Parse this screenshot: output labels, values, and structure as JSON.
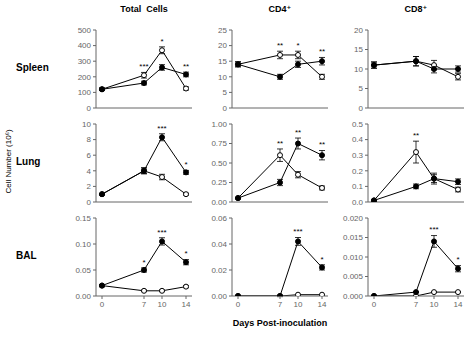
{
  "chart_data": [
    {
      "type": "line",
      "title": "Total  Cells",
      "x": [
        0,
        7,
        10,
        14
      ],
      "xlim": [
        -1,
        15
      ],
      "xticks": [
        0,
        7,
        10,
        14
      ],
      "ylim": [
        0,
        500
      ],
      "yticks": [
        0,
        100,
        200,
        300,
        400,
        500
      ],
      "grid": false,
      "tick_labels": "y",
      "series": [
        {
          "color": "#000000",
          "marker": "filled_circle",
          "values": [
            120,
            160,
            260,
            215
          ],
          "errors": [
            8,
            12,
            18,
            15
          ]
        },
        {
          "color": "#000000",
          "marker": "open_circle",
          "values": [
            120,
            210,
            370,
            125
          ],
          "errors": [
            8,
            18,
            22,
            10
          ]
        }
      ],
      "annotations": [
        {
          "text": "Spleen"
        },
        {
          "x": 7,
          "text": "***"
        },
        {
          "x": 10,
          "text": "*"
        },
        {
          "x": 14,
          "text": "**"
        }
      ]
    },
    {
      "type": "line",
      "title": "CD4⁺",
      "x": [
        0,
        7,
        10,
        14
      ],
      "xlim": [
        -1,
        15
      ],
      "xticks": [
        0,
        7,
        10,
        14
      ],
      "ylim": [
        0,
        25
      ],
      "yticks": [
        0,
        5,
        10,
        15,
        20,
        25
      ],
      "grid": false,
      "tick_labels": "y",
      "series": [
        {
          "color": "#000000",
          "marker": "filled_circle",
          "values": [
            14,
            10,
            14,
            15
          ],
          "errors": [
            0.8,
            0.8,
            1.0,
            1.2
          ]
        },
        {
          "color": "#000000",
          "marker": "open_circle",
          "values": [
            14,
            17,
            17,
            10
          ],
          "errors": [
            0.8,
            1.2,
            1.2,
            0.8
          ]
        }
      ],
      "annotations": [
        {
          "x": 7,
          "text": "**"
        },
        {
          "x": 10,
          "text": "*"
        },
        {
          "x": 14,
          "text": "**"
        }
      ]
    },
    {
      "type": "line",
      "title": "CD8⁺",
      "x": [
        0,
        7,
        10,
        14
      ],
      "xlim": [
        -1,
        15
      ],
      "xticks": [
        0,
        7,
        10,
        14
      ],
      "ylim": [
        0,
        20
      ],
      "yticks": [
        0,
        5,
        10,
        15,
        20
      ],
      "grid": false,
      "tick_labels": "y",
      "series": [
        {
          "color": "#000000",
          "marker": "filled_circle",
          "values": [
            11,
            12,
            10,
            10
          ],
          "errors": [
            0.8,
            1.2,
            1.0,
            0.8
          ]
        },
        {
          "color": "#000000",
          "marker": "open_circle",
          "values": [
            11,
            12,
            11,
            8
          ],
          "errors": [
            0.8,
            1.2,
            1.2,
            0.8
          ]
        }
      ],
      "annotations": []
    },
    {
      "type": "line",
      "ylabel": "Cell Number (10⁶)",
      "x": [
        0,
        7,
        10,
        14
      ],
      "xlim": [
        -1,
        15
      ],
      "xticks": [
        0,
        7,
        10,
        14
      ],
      "ylim": [
        0,
        10
      ],
      "yticks": [
        0,
        2,
        4,
        6,
        8,
        10
      ],
      "grid": false,
      "tick_labels": "y",
      "series": [
        {
          "color": "#000000",
          "marker": "filled_circle",
          "values": [
            1,
            4,
            8.3,
            3.8
          ],
          "errors": [
            0.08,
            0.35,
            0.45,
            0.25
          ]
        },
        {
          "color": "#000000",
          "marker": "open_circle",
          "values": [
            1,
            4,
            3.2,
            1.0
          ],
          "errors": [
            0.08,
            0.4,
            0.35,
            0.12
          ]
        }
      ],
      "annotations": [
        {
          "text": "Lung"
        },
        {
          "x": 10,
          "text": "***"
        },
        {
          "x": 14,
          "text": "*"
        }
      ]
    },
    {
      "type": "line",
      "x": [
        0,
        7,
        10,
        14
      ],
      "xlim": [
        -1,
        15
      ],
      "xticks": [
        0,
        7,
        10,
        14
      ],
      "ylim": [
        0,
        1.0
      ],
      "yticks": [
        {
          "value": 0,
          "label": "0.00"
        },
        {
          "value": 0.25,
          "label": "0.25"
        },
        {
          "value": 0.5,
          "label": "0.50"
        },
        {
          "value": 0.75,
          "label": "0.75"
        },
        {
          "value": 1.0,
          "label": "1.00"
        }
      ],
      "grid": false,
      "tick_labels": "y",
      "series": [
        {
          "color": "#000000",
          "marker": "filled_circle",
          "values": [
            0.05,
            0.25,
            0.75,
            0.6
          ],
          "errors": [
            0.008,
            0.04,
            0.07,
            0.06
          ]
        },
        {
          "color": "#000000",
          "marker": "open_circle",
          "values": [
            0.05,
            0.6,
            0.35,
            0.18
          ],
          "errors": [
            0.008,
            0.08,
            0.04,
            0.025
          ]
        }
      ],
      "annotations": [
        {
          "x": 7,
          "text": "**"
        },
        {
          "x": 10,
          "text": "**"
        },
        {
          "x": 14,
          "text": "**"
        }
      ]
    },
    {
      "type": "line",
      "x": [
        0,
        7,
        10,
        14
      ],
      "xlim": [
        -1,
        15
      ],
      "xticks": [
        0,
        7,
        10,
        14
      ],
      "ylim": [
        0,
        0.5
      ],
      "yticks": [
        {
          "value": 0,
          "label": "0.0"
        },
        0.1,
        0.2,
        0.3,
        0.4,
        0.5
      ],
      "grid": false,
      "tick_labels": "y",
      "series": [
        {
          "color": "#000000",
          "marker": "filled_circle",
          "values": [
            0.01,
            0.1,
            0.15,
            0.13
          ],
          "errors": [
            0.004,
            0.015,
            0.025,
            0.018
          ]
        },
        {
          "color": "#000000",
          "marker": "open_circle",
          "values": [
            0.01,
            0.32,
            0.15,
            0.08
          ],
          "errors": [
            0.004,
            0.07,
            0.035,
            0.015
          ]
        }
      ],
      "annotations": [
        {
          "x": 7,
          "text": "**"
        }
      ]
    },
    {
      "type": "line",
      "x": [
        0,
        7,
        10,
        14
      ],
      "xlim": [
        -1,
        15
      ],
      "xticks": [
        0,
        7,
        10,
        14
      ],
      "ylim": [
        0,
        0.15
      ],
      "yticks": [
        {
          "value": 0,
          "label": "0.00"
        },
        0.05,
        {
          "value": 0.1,
          "label": "0.10"
        },
        0.15
      ],
      "grid": false,
      "series": [
        {
          "color": "#000000",
          "marker": "filled_circle",
          "values": [
            0.02,
            0.05,
            0.105,
            0.065
          ],
          "errors": [
            0.002,
            0.004,
            0.007,
            0.005
          ]
        },
        {
          "color": "#000000",
          "marker": "open_circle",
          "values": [
            0.02,
            0.01,
            0.01,
            0.018
          ],
          "errors": [
            0.002,
            0.0015,
            0.0015,
            0.002
          ]
        }
      ],
      "annotations": [
        {
          "text": "BAL"
        },
        {
          "x": 7,
          "text": "*"
        },
        {
          "x": 10,
          "text": "***"
        },
        {
          "x": 14,
          "text": "*"
        }
      ]
    },
    {
      "type": "line",
      "xlabel": "Days Post-inoculation",
      "x": [
        0,
        7,
        10,
        14
      ],
      "xlim": [
        -1,
        15
      ],
      "xticks": [
        0,
        7,
        10,
        14
      ],
      "ylim": [
        0,
        0.06
      ],
      "yticks": [
        {
          "value": 0,
          "label": "0.00"
        },
        0.02,
        0.04,
        0.06
      ],
      "grid": false,
      "series": [
        {
          "color": "#000000",
          "marker": "filled_circle",
          "values": [
            0.0,
            0.0,
            0.042,
            0.022
          ],
          "errors": [
            0.0,
            0.0005,
            0.003,
            0.002
          ]
        },
        {
          "color": "#000000",
          "marker": "open_circle",
          "values": [
            0.0,
            0.0,
            0.001,
            0.001
          ],
          "errors": [
            0.0,
            0.0,
            0.0001,
            0.0001
          ]
        }
      ],
      "annotations": [
        {
          "x": 10,
          "text": "***"
        },
        {
          "x": 14,
          "text": "*"
        }
      ]
    },
    {
      "type": "line",
      "x": [
        0,
        7,
        10,
        14
      ],
      "xlim": [
        -1,
        15
      ],
      "xticks": [
        0,
        7,
        10,
        14
      ],
      "ylim": [
        0,
        0.02
      ],
      "yticks": [
        {
          "value": 0,
          "label": "0.000"
        },
        0.005,
        {
          "value": 0.01,
          "label": "0.010"
        },
        0.015,
        {
          "value": 0.02,
          "label": "0.020"
        }
      ],
      "grid": false,
      "series": [
        {
          "color": "#000000",
          "marker": "filled_circle",
          "values": [
            0.0,
            0.001,
            0.014,
            0.007
          ],
          "errors": [
            0.0,
            0.0001,
            0.0015,
            0.0008
          ]
        },
        {
          "color": "#000000",
          "marker": "open_circle",
          "values": [
            0.0,
            0.0,
            0.001,
            0.001
          ],
          "errors": [
            0.0,
            0.0,
            0.0001,
            0.0001
          ]
        }
      ],
      "annotations": [
        {
          "x": 10,
          "text": "***"
        },
        {
          "x": 14,
          "text": "*"
        }
      ]
    }
  ]
}
